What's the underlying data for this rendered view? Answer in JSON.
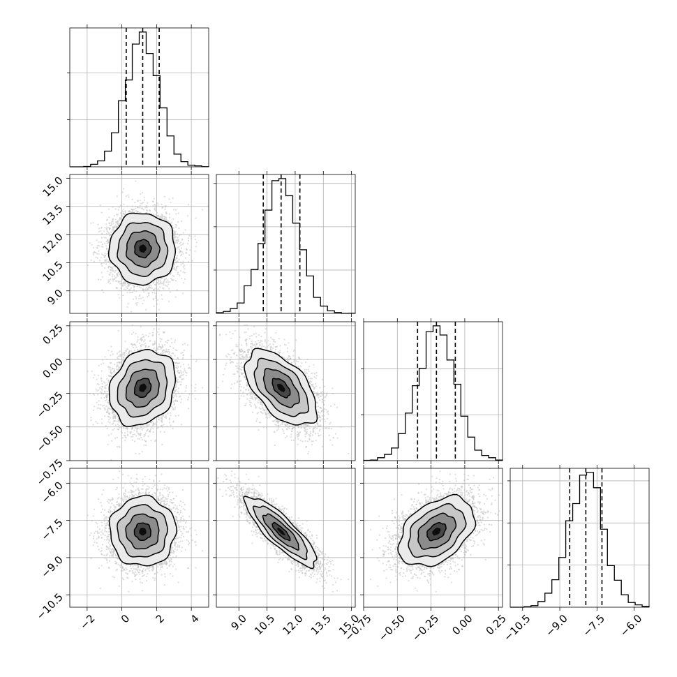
{
  "chart_data": {
    "type": "corner",
    "parameters": [
      {
        "ticks": [
          -2,
          0,
          2,
          4
        ],
        "tick_labels": [
          "−2",
          "0",
          "2",
          "4"
        ],
        "range": [
          -3.0,
          5.0
        ],
        "mean": 1.2,
        "sd": 0.95,
        "quantiles": [
          0.25,
          1.2,
          2.15
        ]
      },
      {
        "ticks": [
          9.0,
          10.5,
          12.0,
          13.5,
          15.0
        ],
        "tick_labels": [
          "9.0",
          "10.5",
          "12.0",
          "13.5",
          "15.0"
        ],
        "range": [
          7.8,
          15.2
        ],
        "mean": 11.25,
        "sd": 0.95,
        "quantiles": [
          10.3,
          11.25,
          12.25
        ]
      },
      {
        "ticks": [
          -0.75,
          -0.5,
          -0.25,
          0.0,
          0.25
        ],
        "tick_labels": [
          "−0.75",
          "−0.50",
          "−0.25",
          "0.00",
          "0.25"
        ],
        "range": [
          -0.75,
          0.28
        ],
        "mean": -0.21,
        "sd": 0.14,
        "quantiles": [
          -0.35,
          -0.21,
          -0.07
        ]
      },
      {
        "ticks": [
          -10.5,
          -9.0,
          -7.5,
          -6.0
        ],
        "tick_labels": [
          "−10.5",
          "−9.0",
          "−7.5",
          "−6.0"
        ],
        "range": [
          -11.0,
          -5.4
        ],
        "mean": -7.95,
        "sd": 0.7,
        "quantiles": [
          -8.6,
          -7.95,
          -7.3
        ]
      }
    ],
    "correlations": [
      [
        1.0,
        0.0,
        0.2,
        0.0
      ],
      [
        0.0,
        1.0,
        -0.55,
        -0.85
      ],
      [
        0.2,
        -0.55,
        1.0,
        0.4
      ],
      [
        0.0,
        -0.85,
        0.4,
        1.0
      ]
    ],
    "histogram_bins": 20,
    "contour_levels_sigma": [
      0.5,
      1.0,
      1.5,
      2.0
    ],
    "grid": true,
    "colors": {
      "points": "#bfbfbf",
      "density": "#000000",
      "line": "#000000",
      "grid": "#b0b0b0"
    }
  }
}
